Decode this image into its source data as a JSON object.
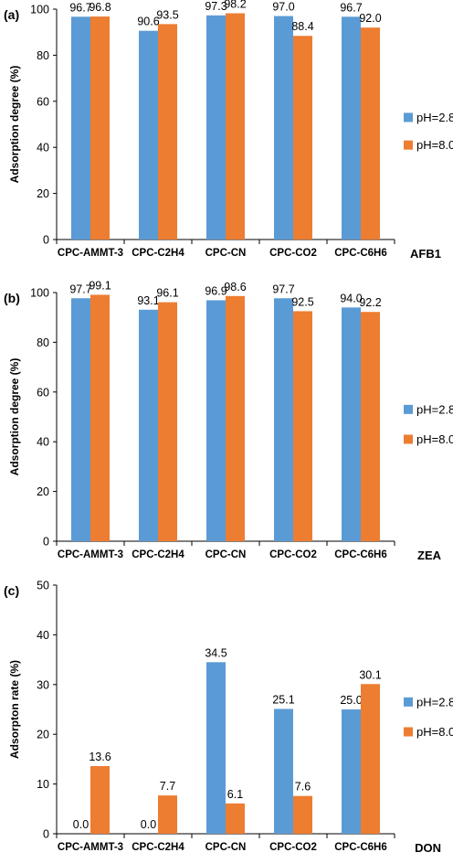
{
  "series_colors": {
    "pH=2.8": "#5B9BD5",
    "pH=8.0": "#ED7D31"
  },
  "chart_data": [
    {
      "type": "bar",
      "panel_label": "(a)",
      "tag": "AFB1",
      "categories": [
        "CPC-AMMT-3",
        "CPC-C2H4",
        "CPC-CN",
        "CPC-CO2",
        "CPC-C6H6"
      ],
      "series": [
        {
          "name": "pH=2.8",
          "values": [
            96.7,
            90.6,
            97.3,
            97.0,
            96.7
          ],
          "labels": [
            "96.7",
            "90.6",
            "97.3",
            "97.0",
            "96.7"
          ]
        },
        {
          "name": "pH=8.0",
          "values": [
            96.8,
            93.5,
            98.2,
            88.4,
            92.0
          ],
          "labels": [
            "96.8",
            "93.5",
            "98.2",
            "88.4",
            "92.0"
          ]
        }
      ],
      "ylabel": "Adsorption degree (%)",
      "ylim": [
        0,
        100
      ],
      "yticks": [
        "0",
        "20",
        "40",
        "60",
        "80",
        "100"
      ],
      "legend_position": "right",
      "grid": false
    },
    {
      "type": "bar",
      "panel_label": "(b)",
      "tag": "ZEA",
      "categories": [
        "CPC-AMMT-3",
        "CPC-C2H4",
        "CPC-CN",
        "CPC-CO2",
        "CPC-C6H6"
      ],
      "series": [
        {
          "name": "pH=2.8",
          "values": [
            97.7,
            93.1,
            96.9,
            97.7,
            94.0
          ],
          "labels": [
            "97.7",
            "93.1",
            "96.9",
            "97.7",
            "94.0"
          ]
        },
        {
          "name": "pH=8.0",
          "values": [
            99.1,
            96.1,
            98.6,
            92.5,
            92.2
          ],
          "labels": [
            "99.1",
            "96.1",
            "98.6",
            "92.5",
            "92.2"
          ]
        }
      ],
      "ylabel": "Adsorption degree (%)",
      "ylim": [
        0,
        100
      ],
      "yticks": [
        "0",
        "20",
        "40",
        "60",
        "80",
        "100"
      ],
      "legend_position": "right",
      "grid": false
    },
    {
      "type": "bar",
      "panel_label": "(c)",
      "tag": "DON",
      "categories": [
        "CPC-AMMT-3",
        "CPC-C2H4",
        "CPC-CN",
        "CPC-CO2",
        "CPC-C6H6"
      ],
      "series": [
        {
          "name": "pH=2.8",
          "values": [
            0.0,
            0.0,
            34.5,
            25.1,
            25.0
          ],
          "labels": [
            "0.0",
            "0.0",
            "34.5",
            "25.1",
            "25.0"
          ]
        },
        {
          "name": "pH=8.0",
          "values": [
            13.6,
            7.7,
            6.1,
            7.6,
            30.1
          ],
          "labels": [
            "13.6",
            "7.7",
            "6.1",
            "7.6",
            "30.1"
          ]
        }
      ],
      "ylabel": "Adsorpton rate (%)",
      "ylim": [
        0,
        50
      ],
      "yticks": [
        "0",
        "10",
        "20",
        "30",
        "40",
        "50"
      ],
      "legend_position": "right",
      "grid": false
    }
  ]
}
